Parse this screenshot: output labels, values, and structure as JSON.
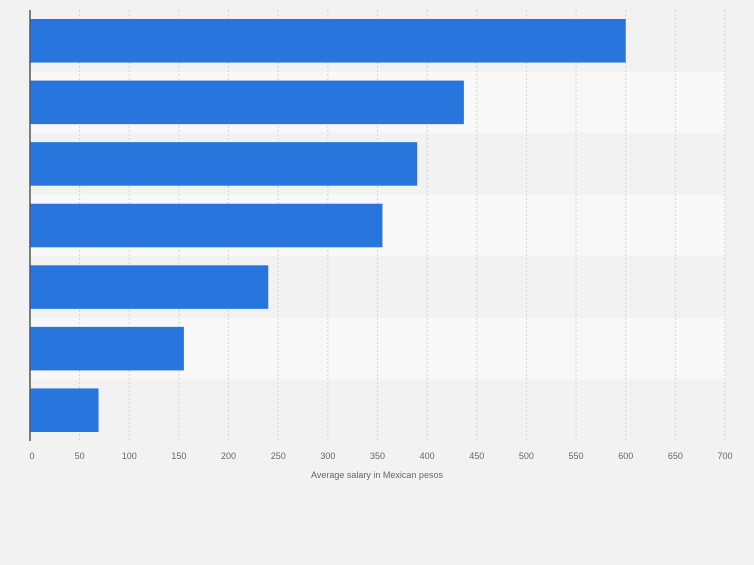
{
  "chart_data": {
    "type": "bar",
    "orientation": "horizontal",
    "categories": [
      "",
      "",
      "",
      "",
      "",
      "",
      ""
    ],
    "values": [
      600,
      437,
      390,
      355,
      240,
      155,
      69
    ],
    "title": "",
    "xlabel": "Average salary in Mexican pesos",
    "ylabel": "",
    "xlim": [
      0,
      700
    ],
    "xticks": [
      0,
      50,
      100,
      150,
      200,
      250,
      300,
      350,
      400,
      450,
      500,
      550,
      600,
      650,
      700
    ],
    "grid": true,
    "bar_color": "#2876dd"
  }
}
